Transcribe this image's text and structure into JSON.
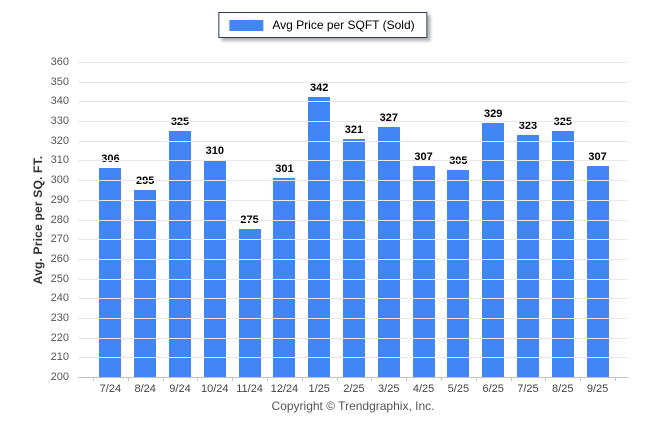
{
  "legend": {
    "label": "Avg Price per SQFT (Sold)",
    "swatch_color": "#4285f4"
  },
  "footer": {
    "text": "Copyright © Trendgraphix, Inc."
  },
  "chart_data": {
    "type": "bar",
    "title": "",
    "xlabel": "",
    "ylabel": "Avg. Price per SQ. FT.",
    "categories": [
      "7/24",
      "8/24",
      "9/24",
      "10/24",
      "11/24",
      "12/24",
      "1/25",
      "2/25",
      "3/25",
      "4/25",
      "5/25",
      "6/25",
      "7/25",
      "8/25",
      "9/25"
    ],
    "series": [
      {
        "name": "Avg Price per SQFT (Sold)",
        "values": [
          306,
          295,
          325,
          310,
          275,
          301,
          342,
          321,
          327,
          307,
          305,
          329,
          323,
          325,
          307
        ]
      }
    ],
    "ylim": [
      200,
      360
    ],
    "ytick_step": 10,
    "grid": "horizontal",
    "legend_position": "top-center",
    "bar_color": "#4285f4",
    "value_labels": true
  }
}
